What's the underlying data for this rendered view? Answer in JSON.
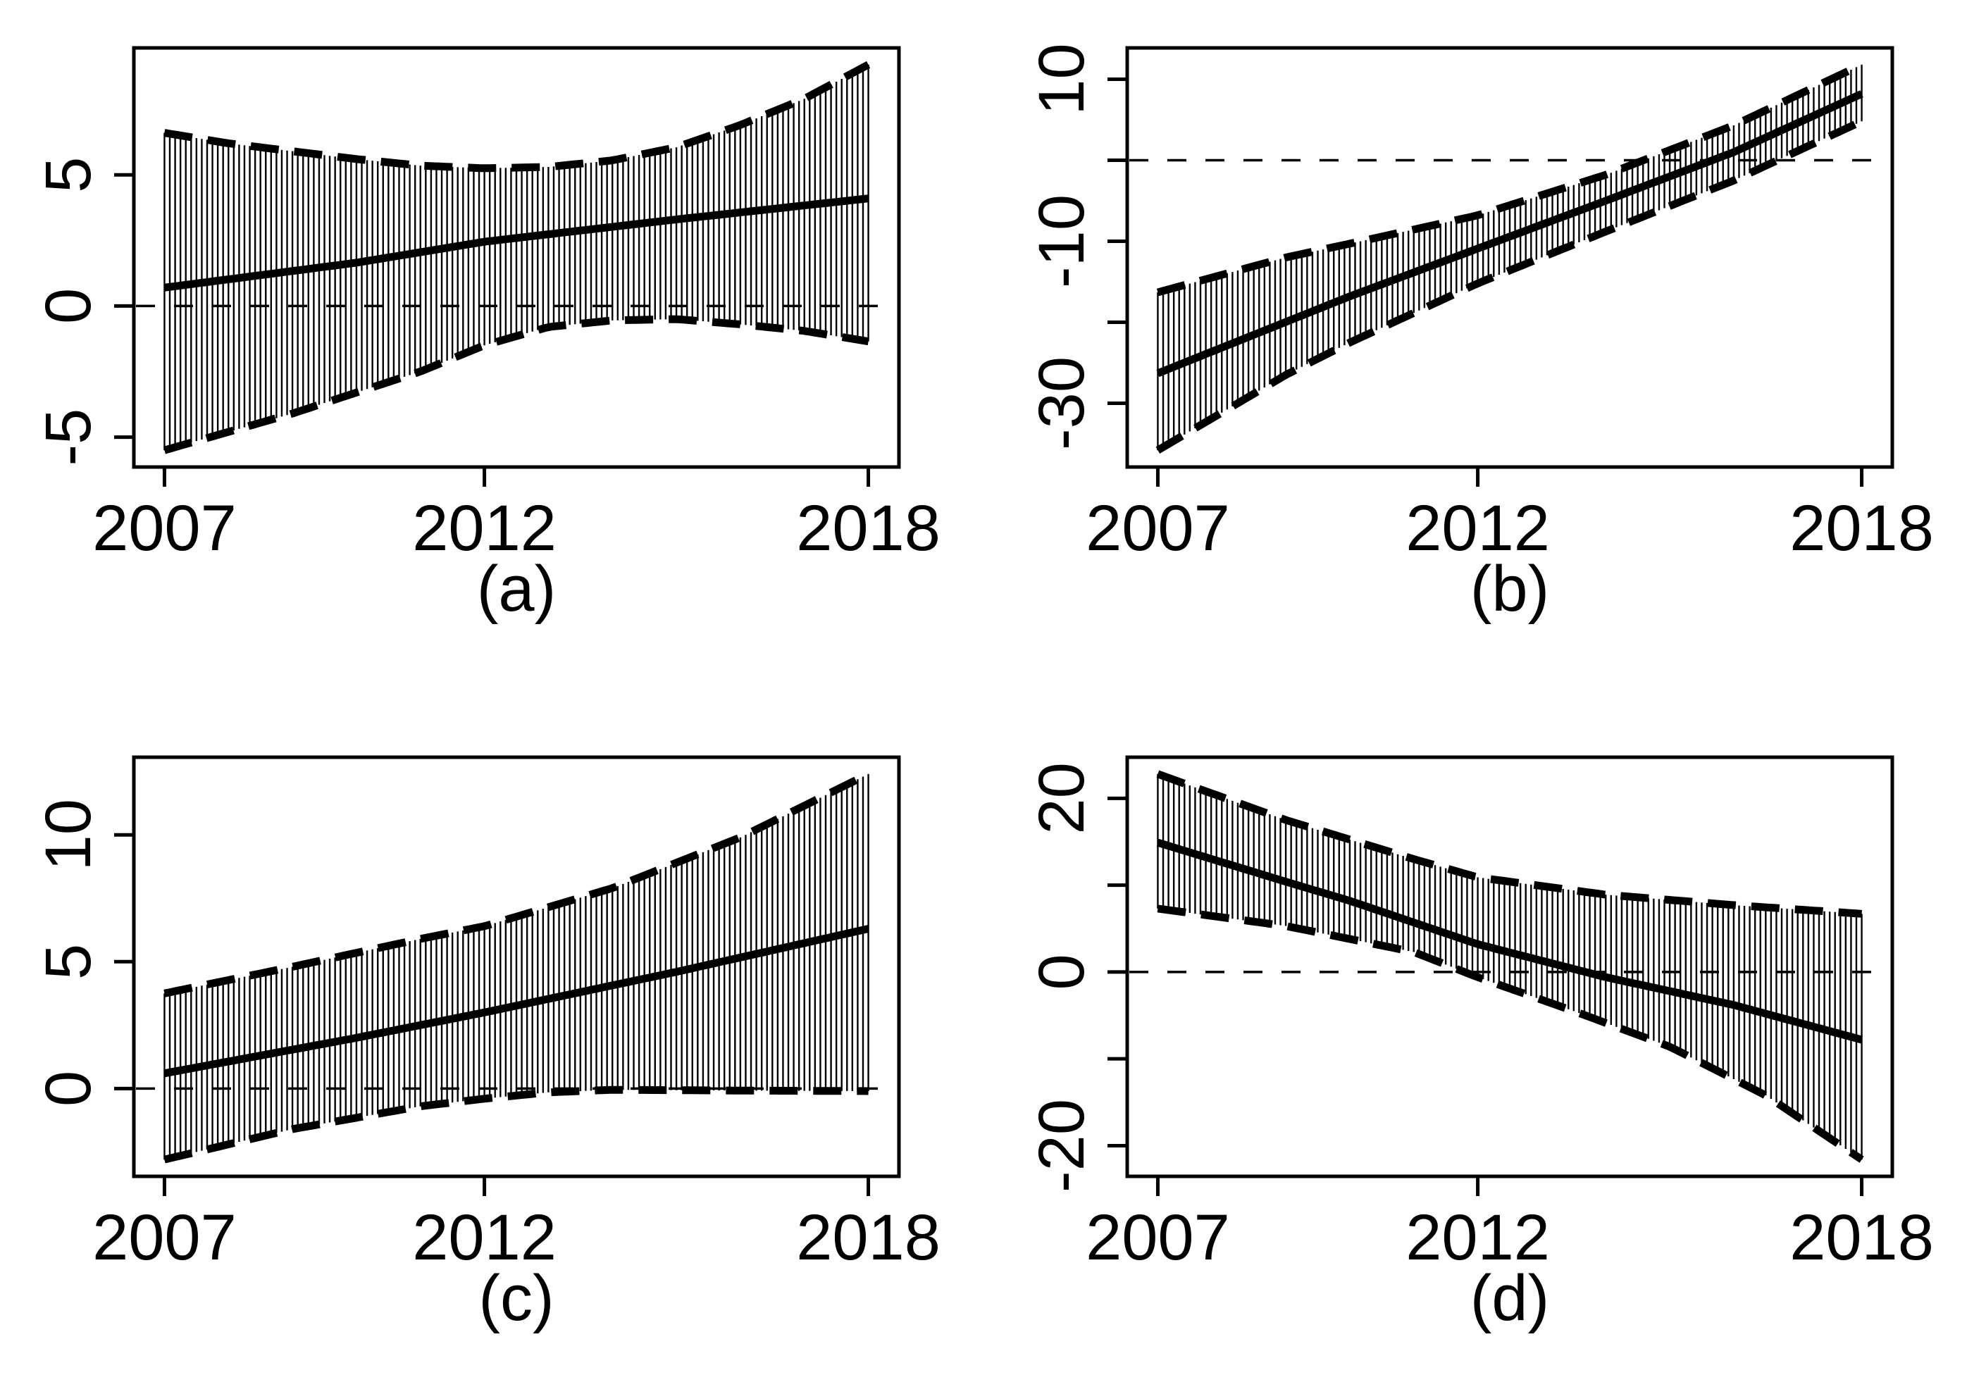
{
  "figure": {
    "background_color": "#ffffff",
    "ink_color": "#000000",
    "layout": "2x2-grid",
    "grid": true
  },
  "chart_data": [
    {
      "type": "line",
      "panel": "a",
      "caption": "(a)",
      "band_style": "vertical-hatch-monthly-ci",
      "legend": "none",
      "x": {
        "range": [
          2007,
          2018
        ],
        "ticks": [
          2007,
          2012,
          2018
        ],
        "tick_labels": [
          "2007",
          "2012",
          "2018"
        ]
      },
      "y": {
        "range": [
          -5.5,
          9.2
        ],
        "ticks": [
          {
            "value": 5,
            "label": "5"
          },
          {
            "value": 0,
            "label": "0"
          },
          {
            "value": -5,
            "label": "-5"
          }
        ]
      },
      "zero_line": true,
      "band_resolution_months": 133,
      "series": [
        {
          "name": "estimate",
          "style": "solid",
          "points": [
            [
              2007,
              0.7
            ],
            [
              2010,
              1.65
            ],
            [
              2012,
              2.45
            ],
            [
              2015,
              3.3
            ],
            [
              2018,
              4.1
            ]
          ]
        },
        {
          "name": "upper-ci",
          "style": "dashed",
          "points": [
            [
              2007,
              6.6
            ],
            [
              2008,
              6.2
            ],
            [
              2009,
              5.9
            ],
            [
              2010,
              5.6
            ],
            [
              2011,
              5.35
            ],
            [
              2012,
              5.25
            ],
            [
              2013,
              5.3
            ],
            [
              2014,
              5.55
            ],
            [
              2015,
              6.05
            ],
            [
              2016,
              6.9
            ],
            [
              2017,
              7.9
            ],
            [
              2018,
              9.2
            ]
          ]
        },
        {
          "name": "lower-ci",
          "style": "dashed",
          "points": [
            [
              2007,
              -5.5
            ],
            [
              2008,
              -4.8
            ],
            [
              2009,
              -4.1
            ],
            [
              2010,
              -3.3
            ],
            [
              2011,
              -2.5
            ],
            [
              2012,
              -1.5
            ],
            [
              2013,
              -0.8
            ],
            [
              2014,
              -0.55
            ],
            [
              2015,
              -0.5
            ],
            [
              2016,
              -0.7
            ],
            [
              2017,
              -0.95
            ],
            [
              2018,
              -1.35
            ]
          ]
        }
      ]
    },
    {
      "type": "line",
      "panel": "b",
      "caption": "(b)",
      "band_style": "vertical-hatch-monthly-ci",
      "legend": "none",
      "x": {
        "range": [
          2007,
          2018
        ],
        "ticks": [
          2007,
          2012,
          2018
        ],
        "tick_labels": [
          "2007",
          "2012",
          "2018"
        ]
      },
      "y": {
        "range": [
          -35.8,
          11.8
        ],
        "ticks": [
          {
            "value": 10,
            "label": "10"
          },
          {
            "value": 0,
            "label": ""
          },
          {
            "value": -10,
            "label": "-10"
          },
          {
            "value": -20,
            "label": ""
          },
          {
            "value": -30,
            "label": "-30"
          }
        ]
      },
      "zero_line": true,
      "band_resolution_months": 133,
      "series": [
        {
          "name": "estimate",
          "style": "solid",
          "points": [
            [
              2007,
              -26.3
            ],
            [
              2010,
              -16.8
            ],
            [
              2012,
              -10.9
            ],
            [
              2014,
              -5
            ],
            [
              2016,
              1
            ],
            [
              2018,
              8.2
            ]
          ]
        },
        {
          "name": "upper-ci",
          "style": "dashed",
          "points": [
            [
              2007,
              -16.3
            ],
            [
              2009,
              -12
            ],
            [
              2010,
              -10.3
            ],
            [
              2012,
              -6.8
            ],
            [
              2014,
              -1.8
            ],
            [
              2016,
              4.3
            ],
            [
              2018,
              11.8
            ]
          ]
        },
        {
          "name": "lower-ci",
          "style": "dashed",
          "points": [
            [
              2007,
              -35.8
            ],
            [
              2009,
              -26.5
            ],
            [
              2010,
              -22.5
            ],
            [
              2012,
              -15.2
            ],
            [
              2014,
              -8.8
            ],
            [
              2016,
              -2.5
            ],
            [
              2018,
              4.8
            ]
          ]
        }
      ]
    },
    {
      "type": "line",
      "panel": "c",
      "caption": "(c)",
      "band_style": "vertical-hatch-monthly-ci",
      "legend": "none",
      "x": {
        "range": [
          2007,
          2018
        ],
        "ticks": [
          2007,
          2012,
          2018
        ],
        "tick_labels": [
          "2007",
          "2012",
          "2018"
        ]
      },
      "y": {
        "range": [
          -2.8,
          12.4
        ],
        "ticks": [
          {
            "value": 10,
            "label": "10"
          },
          {
            "value": 5,
            "label": "5"
          },
          {
            "value": 0,
            "label": "0"
          }
        ]
      },
      "zero_line": true,
      "band_resolution_months": 133,
      "series": [
        {
          "name": "estimate",
          "style": "solid",
          "points": [
            [
              2007,
              0.6
            ],
            [
              2010,
              2
            ],
            [
              2012,
              3
            ],
            [
              2015,
              4.6
            ],
            [
              2018,
              6.3
            ]
          ]
        },
        {
          "name": "upper-ci",
          "style": "dashed",
          "points": [
            [
              2007,
              3.75
            ],
            [
              2009,
              4.8
            ],
            [
              2011,
              5.9
            ],
            [
              2012,
              6.4
            ],
            [
              2014,
              7.9
            ],
            [
              2016,
              9.9
            ],
            [
              2018,
              12.4
            ]
          ]
        },
        {
          "name": "lower-ci",
          "style": "dashed",
          "points": [
            [
              2007,
              -2.8
            ],
            [
              2009,
              -1.6
            ],
            [
              2011,
              -0.7
            ],
            [
              2012,
              -0.4
            ],
            [
              2013,
              -0.15
            ],
            [
              2014,
              -0.05
            ],
            [
              2016,
              -0.08
            ],
            [
              2018,
              -0.1
            ]
          ]
        }
      ]
    },
    {
      "type": "line",
      "panel": "d",
      "caption": "(d)",
      "band_style": "vertical-hatch-monthly-ci",
      "legend": "none",
      "x": {
        "range": [
          2007,
          2018
        ],
        "ticks": [
          2007,
          2012,
          2018
        ],
        "tick_labels": [
          "2007",
          "2012",
          "2018"
        ]
      },
      "y": {
        "range": [
          -21.6,
          22.8
        ],
        "ticks": [
          {
            "value": 20,
            "label": "20"
          },
          {
            "value": 10,
            "label": ""
          },
          {
            "value": 0,
            "label": "0"
          },
          {
            "value": -10,
            "label": ""
          },
          {
            "value": -20,
            "label": "-20"
          }
        ]
      },
      "zero_line": true,
      "band_resolution_months": 133,
      "series": [
        {
          "name": "estimate",
          "style": "solid",
          "points": [
            [
              2007,
              14.9
            ],
            [
              2009,
              10.4
            ],
            [
              2010,
              8.2
            ],
            [
              2012,
              3.2
            ],
            [
              2014,
              -0.6
            ],
            [
              2016,
              -3.8
            ],
            [
              2018,
              -7.8
            ]
          ]
        },
        {
          "name": "upper-ci",
          "style": "dashed",
          "points": [
            [
              2007,
              22.8
            ],
            [
              2009,
              17.5
            ],
            [
              2011,
              13
            ],
            [
              2012,
              10.9
            ],
            [
              2014,
              8.9
            ],
            [
              2016,
              7.7
            ],
            [
              2018,
              6.7
            ]
          ]
        },
        {
          "name": "lower-ci",
          "style": "dashed",
          "points": [
            [
              2007,
              7.3
            ],
            [
              2009,
              5.3
            ],
            [
              2011,
              2.3
            ],
            [
              2012,
              -0.6
            ],
            [
              2013.5,
              -4.5
            ],
            [
              2015,
              -8.6
            ],
            [
              2016.5,
              -14.2
            ],
            [
              2018,
              -21.6
            ]
          ]
        }
      ]
    }
  ]
}
